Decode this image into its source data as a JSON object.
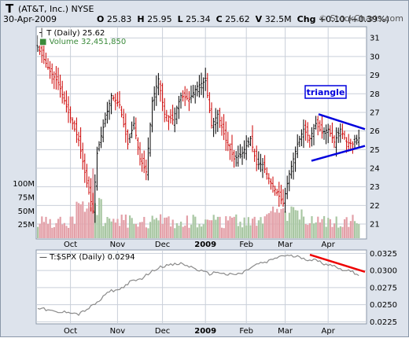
{
  "header": {
    "symbol": "T",
    "company": "(AT&T, Inc.) NYSE",
    "date": "30-Apr-2009",
    "open_label": "O",
    "open": "25.83",
    "high_label": "H",
    "high": "25.95",
    "low_label": "L",
    "low": "25.34",
    "close_label": "C",
    "close": "25.62",
    "volume_label": "V",
    "volume": "32.5M",
    "change_label": "Chg",
    "change": "+0.10 (+0.39%)",
    "watermark": "© StockCharts.com"
  },
  "colors": {
    "up": "#000000",
    "down": "#cc0000",
    "vol_up": "#a9c7a3",
    "vol_down": "#e3a0a8",
    "ratio": "#8a8a8a",
    "trend": "#0000dd",
    "ratio_trend": "#ee0000",
    "grid": "#c9cfd9"
  },
  "chart_data": [
    {
      "type": "candlestick",
      "legend": [
        "T (Daily) 25.62",
        "Volume 32,451,850"
      ],
      "y_ticks": [
        "21",
        "22",
        "23",
        "24",
        "25",
        "26",
        "27",
        "28",
        "29",
        "30",
        "31"
      ],
      "y_range": [
        20.2,
        31.6
      ],
      "volume_ticks": [
        "25M",
        "50M",
        "75M",
        "100M"
      ],
      "volume_range": [
        0,
        140
      ],
      "x_labels": [
        "Oct",
        "Nov",
        "Dec",
        "2009",
        "Feb",
        "Mar",
        "Apr"
      ],
      "annotation": "triangle",
      "close_keyframes": [
        [
          0,
          30.5
        ],
        [
          6,
          29.2
        ],
        [
          10,
          28.6
        ],
        [
          14,
          27.3
        ],
        [
          20,
          25.5
        ],
        [
          24,
          23.2
        ],
        [
          27,
          21.7
        ],
        [
          29,
          24.8
        ],
        [
          32,
          26.2
        ],
        [
          36,
          27.9
        ],
        [
          40,
          27.4
        ],
        [
          44,
          25.3
        ],
        [
          47,
          26.4
        ],
        [
          50,
          24.5
        ],
        [
          53,
          23.8
        ],
        [
          56,
          27.6
        ],
        [
          59,
          28.8
        ],
        [
          62,
          26.9
        ],
        [
          66,
          26.6
        ],
        [
          70,
          27.9
        ],
        [
          74,
          27.7
        ],
        [
          78,
          28.4
        ],
        [
          82,
          28.7
        ],
        [
          85,
          26.3
        ],
        [
          88,
          26.9
        ],
        [
          92,
          25.5
        ],
        [
          96,
          24.5
        ],
        [
          100,
          24.8
        ],
        [
          104,
          25.6
        ],
        [
          107,
          24.2
        ],
        [
          110,
          24.2
        ],
        [
          114,
          23.2
        ],
        [
          117,
          22.7
        ],
        [
          120,
          22.1
        ],
        [
          123,
          23.7
        ],
        [
          127,
          25.3
        ],
        [
          130,
          26.1
        ],
        [
          133,
          25.6
        ],
        [
          136,
          26.4
        ],
        [
          139,
          25.9
        ],
        [
          142,
          26.1
        ],
        [
          145,
          25.4
        ],
        [
          148,
          26.1
        ],
        [
          151,
          25.4
        ],
        [
          154,
          25.3
        ],
        [
          157,
          25.62
        ]
      ]
    },
    {
      "type": "line",
      "legend": "T:$SPX (Daily) 0.0294",
      "y_ticks": [
        "0.0225",
        "0.0250",
        "0.0275",
        "0.0300",
        "0.0325"
      ],
      "y_range": [
        0.0222,
        0.033
      ],
      "x_labels": [
        "Oct",
        "Nov",
        "Dec",
        "2009",
        "Feb",
        "Mar",
        "Apr"
      ],
      "ratio_keyframes": [
        [
          0,
          0.0246
        ],
        [
          5,
          0.0242
        ],
        [
          10,
          0.0238
        ],
        [
          15,
          0.024
        ],
        [
          20,
          0.0236
        ],
        [
          25,
          0.0245
        ],
        [
          30,
          0.0255
        ],
        [
          35,
          0.027
        ],
        [
          40,
          0.0272
        ],
        [
          45,
          0.0283
        ],
        [
          50,
          0.0287
        ],
        [
          55,
          0.0297
        ],
        [
          60,
          0.0306
        ],
        [
          65,
          0.0308
        ],
        [
          70,
          0.031
        ],
        [
          75,
          0.0305
        ],
        [
          80,
          0.0299
        ],
        [
          84,
          0.0295
        ],
        [
          88,
          0.0298
        ],
        [
          92,
          0.0294
        ],
        [
          96,
          0.0294
        ],
        [
          100,
          0.0296
        ],
        [
          104,
          0.0304
        ],
        [
          108,
          0.031
        ],
        [
          112,
          0.0312
        ],
        [
          116,
          0.0318
        ],
        [
          120,
          0.0322
        ],
        [
          124,
          0.0321
        ],
        [
          128,
          0.032
        ],
        [
          132,
          0.0316
        ],
        [
          136,
          0.0315
        ],
        [
          140,
          0.031
        ],
        [
          144,
          0.0308
        ],
        [
          148,
          0.0302
        ],
        [
          152,
          0.03
        ],
        [
          157,
          0.0294
        ]
      ]
    }
  ]
}
